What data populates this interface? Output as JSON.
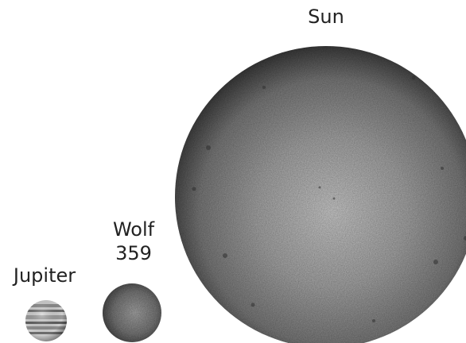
{
  "bodies": {
    "sun": {
      "name": "Sun",
      "icon": "sun-sphere-icon"
    },
    "wolf359": {
      "name_line1": "Wolf",
      "name_line2": "359",
      "icon": "wolf-359-sphere-icon"
    },
    "jupiter": {
      "name": "Jupiter",
      "icon": "jupiter-sphere-icon"
    }
  },
  "colors": {
    "sun_light": "#c9c9c9",
    "sun_mid": "#8f8f8f",
    "sun_dark": "#3a3a3a",
    "wolf_light": "#b0b0b0",
    "wolf_dark": "#4a4a4a",
    "jupiter_light": "#d8d8d8",
    "jupiter_band": "#6e6e6e",
    "text": "#222222"
  }
}
